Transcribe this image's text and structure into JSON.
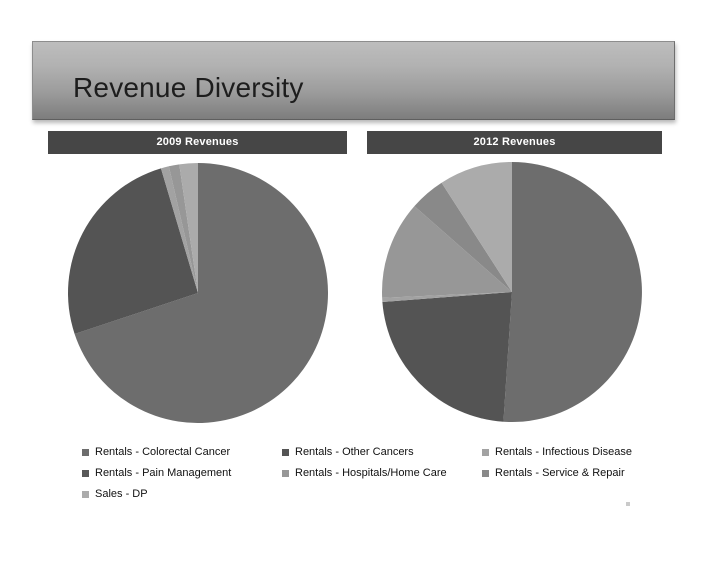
{
  "slide_title": "Revenue Diversity",
  "charts": [
    {
      "header": "2009 Revenues"
    },
    {
      "header": "2012 Revenues"
    }
  ],
  "legend": {
    "items": [
      {
        "label": "Rentals - Colorectal Cancer",
        "color": "#6d6d6d"
      },
      {
        "label": "Rentals - Other Cancers",
        "color": "#545454"
      },
      {
        "label": "Rentals - Infectious Disease",
        "color": "#a2a2a2"
      },
      {
        "label": "Rentals - Pain Management",
        "color": "#585858"
      },
      {
        "label": "Rentals - Hospitals/Home Care",
        "color": "#979797"
      },
      {
        "label": "Rentals - Service & Repair",
        "color": "#898989"
      },
      {
        "label": "Sales - DP",
        "color": "#ababab"
      }
    ]
  },
  "chart_data": [
    {
      "type": "pie",
      "title": "2009 Revenues",
      "categories": [
        "Rentals - Colorectal Cancer",
        "Rentals - Other Cancers",
        "Rentals - Infectious Disease",
        "Rentals - Pain Management",
        "Rentals - Hospitals/Home Care",
        "Rentals - Service & Repair",
        "Sales - DP"
      ],
      "values": [
        69.9,
        25.5,
        1.0,
        0,
        1.3,
        0,
        2.3
      ],
      "unit": "percent of revenue (estimated from slice angles; no data labels shown)",
      "colors": [
        "#6d6d6d",
        "#545454",
        "#a2a2a2",
        "#585858",
        "#979797",
        "#898989",
        "#ababab"
      ],
      "start_angle_deg": 0,
      "direction": "clockwise",
      "legend_position": "bottom-shared"
    },
    {
      "type": "pie",
      "title": "2012 Revenues",
      "categories": [
        "Rentals - Colorectal Cancer",
        "Rentals - Other Cancers",
        "Rentals - Infectious Disease",
        "Rentals - Pain Management",
        "Rentals - Hospitals/Home Care",
        "Rentals - Service & Repair",
        "Sales - DP"
      ],
      "values": [
        51.0,
        22.7,
        0.5,
        0,
        12.2,
        4.4,
        9.1
      ],
      "unit": "percent of revenue (estimated from slice angles; no data labels shown)",
      "colors": [
        "#6d6d6d",
        "#545454",
        "#a2a2a2",
        "#585858",
        "#979797",
        "#898989",
        "#ababab"
      ],
      "start_angle_deg": 0,
      "direction": "clockwise",
      "legend_position": "bottom-shared"
    }
  ],
  "stray_mark_color": "#bdbdbd"
}
